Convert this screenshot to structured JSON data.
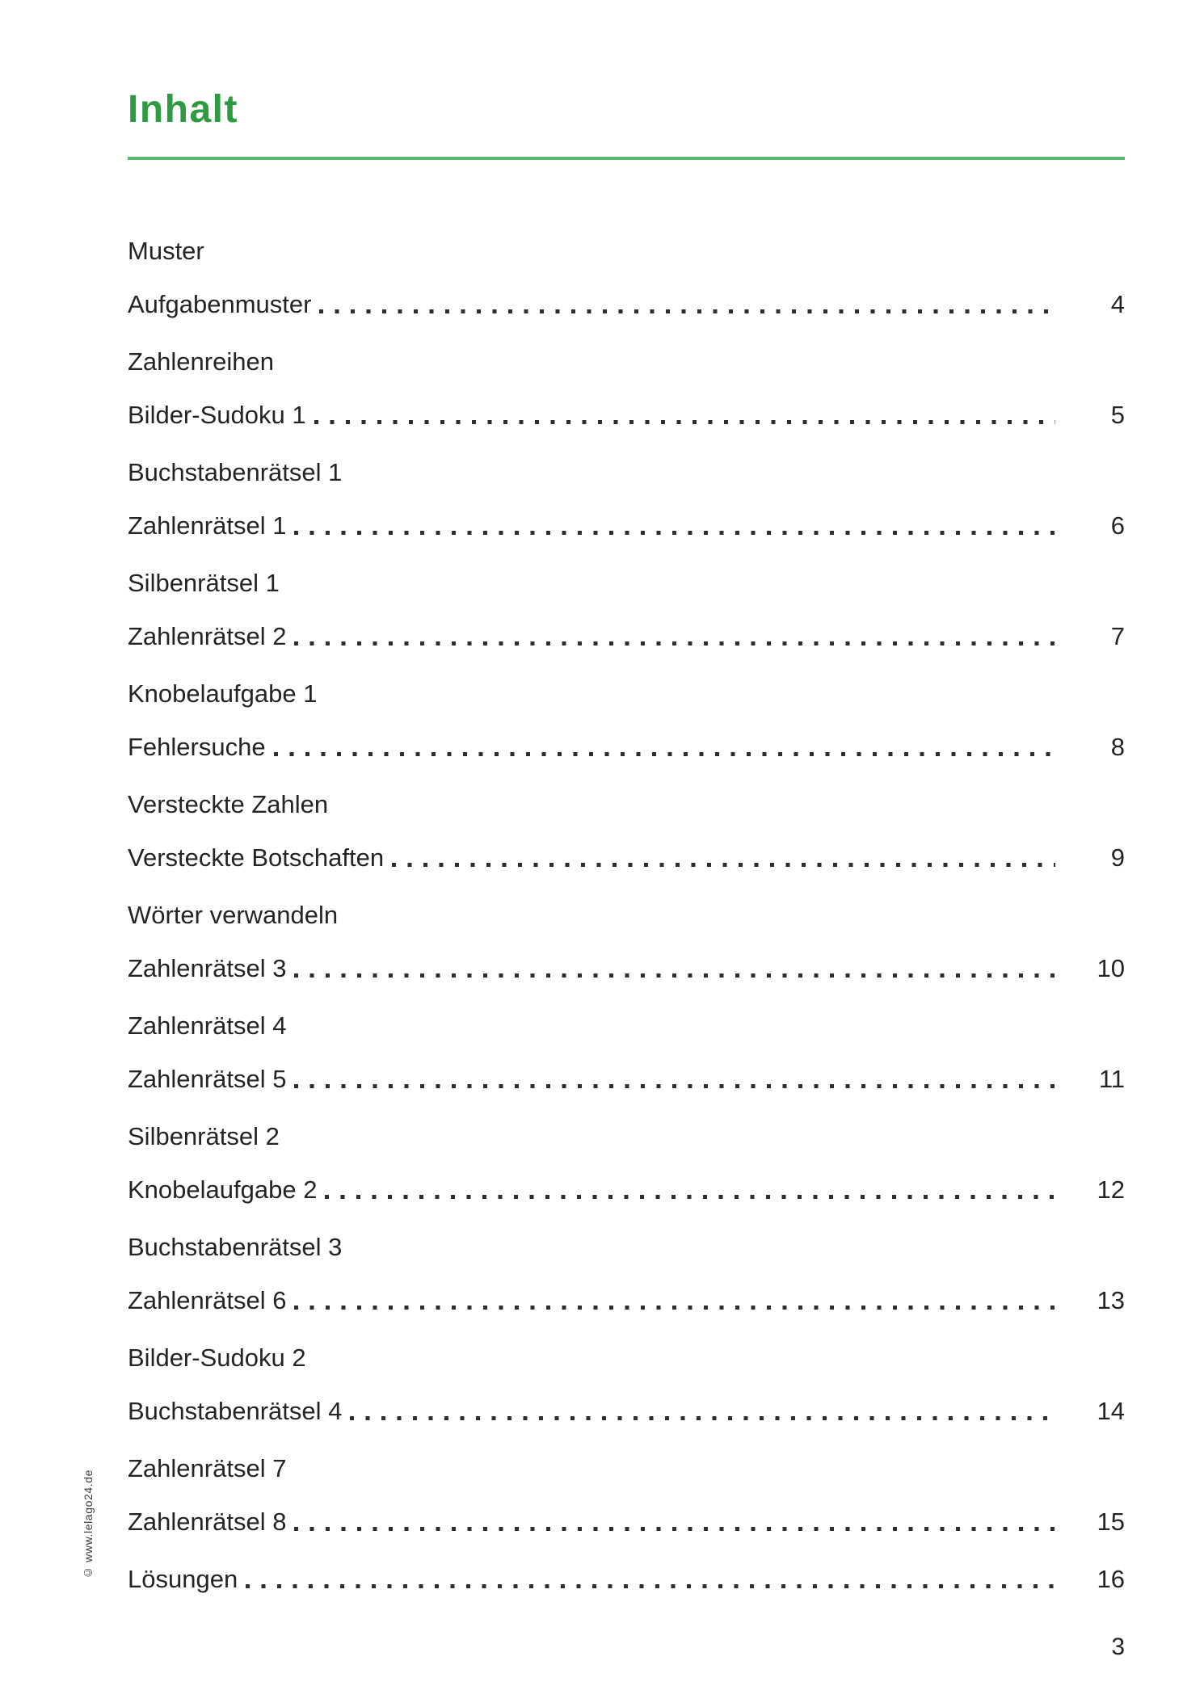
{
  "page": {
    "title": "Inhalt",
    "footer_page_number": "3",
    "side_credit": "© www.lelago24.de"
  },
  "theme": {
    "title_color": "#2e9b42",
    "rule_color": "#60b46d",
    "text_color": "#242424",
    "dot_color": "#2e2e2e"
  },
  "toc": {
    "groups": [
      {
        "lines": [
          {
            "label": "Muster"
          },
          {
            "label": "Aufgabenmuster",
            "page": "4"
          }
        ]
      },
      {
        "lines": [
          {
            "label": "Zahlenreihen"
          },
          {
            "label": "Bilder-Sudoku 1",
            "page": "5"
          }
        ]
      },
      {
        "lines": [
          {
            "label": "Buchstabenrätsel 1"
          },
          {
            "label": "Zahlenrätsel 1",
            "page": "6"
          }
        ]
      },
      {
        "lines": [
          {
            "label": "Silbenrätsel 1"
          },
          {
            "label": "Zahlenrätsel 2",
            "page": "7"
          }
        ]
      },
      {
        "lines": [
          {
            "label": "Knobelaufgabe 1"
          },
          {
            "label": "Fehlersuche",
            "page": "8"
          }
        ]
      },
      {
        "lines": [
          {
            "label": "Versteckte Zahlen"
          },
          {
            "label": "Versteckte Botschaften",
            "page": "9"
          }
        ]
      },
      {
        "lines": [
          {
            "label": "Wörter verwandeln"
          },
          {
            "label": "Zahlenrätsel 3",
            "page": "10"
          }
        ]
      },
      {
        "lines": [
          {
            "label": "Zahlenrätsel 4"
          },
          {
            "label": "Zahlenrätsel 5",
            "page": "11"
          }
        ]
      },
      {
        "lines": [
          {
            "label": "Silbenrätsel 2"
          },
          {
            "label": "Knobelaufgabe 2",
            "page": "12"
          }
        ]
      },
      {
        "lines": [
          {
            "label": "Buchstabenrätsel 3"
          },
          {
            "label": "Zahlenrätsel 6",
            "page": "13"
          }
        ]
      },
      {
        "lines": [
          {
            "label": "Bilder-Sudoku 2"
          },
          {
            "label": "Buchstabenrätsel 4",
            "page": "14"
          }
        ]
      },
      {
        "lines": [
          {
            "label": "Zahlenrätsel 7"
          },
          {
            "label": "Zahlenrätsel 8",
            "page": "15"
          }
        ]
      },
      {
        "lines": [
          {
            "label": "Lösungen",
            "page": "16"
          }
        ]
      }
    ]
  }
}
